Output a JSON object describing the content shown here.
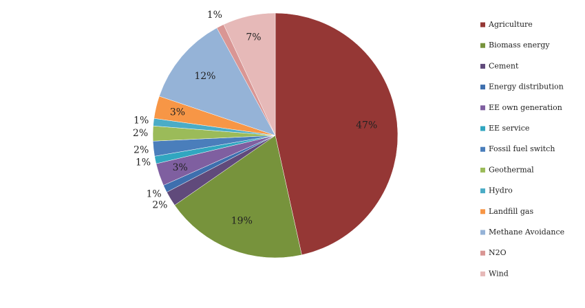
{
  "chart_data": {
    "type": "pie",
    "categories": [
      "Agriculture",
      "Biomass energy",
      "Cement",
      "Energy distribution",
      "EE own generation",
      "EE service",
      "Fossil fuel switch",
      "Geothermal",
      "Hydro",
      "Landfill gas",
      "Methane Avoidance",
      "N2O",
      "Wind"
    ],
    "values": [
      47,
      19,
      2,
      1,
      3,
      1,
      2,
      2,
      1,
      3,
      12,
      1,
      7
    ],
    "value_labels": [
      "47%",
      "19%",
      "2%",
      "1%",
      "3%",
      "1%",
      "2%",
      "2%",
      "1%",
      "3%",
      "12%",
      "1%",
      "7%"
    ],
    "colors": [
      "#953735",
      "#77933c",
      "#604a7b",
      "#3e6fae",
      "#7f5fa0",
      "#31a6c0",
      "#4a7ebb",
      "#9bbb59",
      "#4bacc6",
      "#f79646",
      "#95b3d7",
      "#d99694",
      "#e6b9b8"
    ],
    "legend": "right"
  }
}
